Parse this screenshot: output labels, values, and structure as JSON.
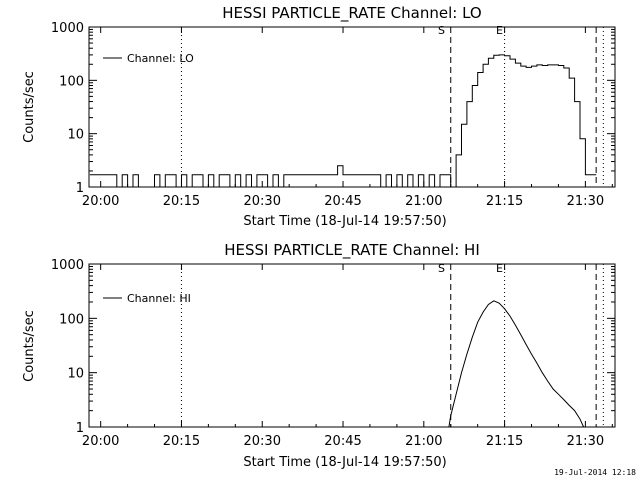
{
  "chart_data": [
    {
      "type": "line",
      "title": "HESSI PARTICLE_RATE Channel: LO",
      "xlabel": "Start Time (18-Jul-14 19:57:50)",
      "ylabel": "Counts/sec",
      "yscale": "log",
      "ylim": [
        1,
        1000
      ],
      "xlim": [
        "19:57:50",
        "21:35:30"
      ],
      "x_ticks": [
        "20:00",
        "20:15",
        "20:30",
        "20:45",
        "21:00",
        "21:15",
        "21:30"
      ],
      "y_ticks": [
        "1",
        "10",
        "100",
        "1000"
      ],
      "legend": "top-left",
      "series": [
        {
          "name": "Channel: LO",
          "x": [
            "19:58",
            "20:02",
            "20:03",
            "20:04",
            "20:05",
            "20:06",
            "20:07",
            "20:09",
            "20:10",
            "20:11",
            "20:12",
            "20:13",
            "20:14",
            "20:15",
            "20:16",
            "20:17",
            "20:18",
            "20:19",
            "20:20",
            "20:21",
            "20:22",
            "20:23",
            "20:24",
            "20:25",
            "20:26",
            "20:27",
            "20:28",
            "20:29",
            "20:30",
            "20:31",
            "20:32",
            "20:33",
            "20:34",
            "20:35",
            "20:36",
            "20:37",
            "20:38",
            "20:39",
            "20:40",
            "20:41",
            "20:42",
            "20:43",
            "20:44",
            "20:45",
            "20:46",
            "20:47",
            "20:48",
            "20:49",
            "20:50",
            "20:51",
            "20:52",
            "20:53",
            "20:54",
            "20:55",
            "20:56",
            "20:57",
            "20:58",
            "20:59",
            "21:00",
            "21:01",
            "21:02",
            "21:03",
            "21:04",
            "21:05",
            "21:06",
            "21:07",
            "21:08",
            "21:09",
            "21:10",
            "21:11",
            "21:12",
            "21:13",
            "21:14",
            "21:15",
            "21:16",
            "21:17",
            "21:18",
            "21:19",
            "21:20",
            "21:21",
            "21:22",
            "21:23",
            "21:24",
            "21:25",
            "21:26",
            "21:27",
            "21:28",
            "21:29",
            "21:30",
            "21:31",
            "21:32"
          ],
          "y": [
            1.7,
            1.7,
            1,
            1.7,
            1,
            1.7,
            1,
            1,
            1.7,
            1,
            1.7,
            1.7,
            1,
            1.7,
            1,
            1.7,
            1.7,
            1,
            1.7,
            1,
            1.7,
            1.7,
            1,
            1.7,
            1,
            1.7,
            1,
            1.7,
            1.7,
            1,
            1.7,
            1,
            1.7,
            1.7,
            1.7,
            1.7,
            1.7,
            1.7,
            1.7,
            1.7,
            1.7,
            1.7,
            2.5,
            1.7,
            1.7,
            1.7,
            1.7,
            1.7,
            1.7,
            1.7,
            1,
            1.7,
            1,
            1.7,
            1,
            1.7,
            1,
            1.7,
            1,
            1.7,
            1,
            1.7,
            1.7,
            1,
            4,
            15,
            40,
            80,
            140,
            200,
            260,
            295,
            300,
            290,
            250,
            210,
            185,
            175,
            185,
            195,
            190,
            195,
            195,
            190,
            170,
            110,
            40,
            8,
            1.7,
            1.7,
            1.7
          ]
        }
      ],
      "annotations": [
        "S",
        "E"
      ]
    },
    {
      "type": "line",
      "title": "HESSI PARTICLE_RATE Channel: HI",
      "xlabel": "Start Time (18-Jul-14 19:57:50)",
      "ylabel": "Counts/sec",
      "yscale": "log",
      "ylim": [
        1,
        1000
      ],
      "xlim": [
        "19:57:50",
        "21:35:30"
      ],
      "x_ticks": [
        "20:00",
        "20:15",
        "20:30",
        "20:45",
        "21:00",
        "21:15",
        "21:30"
      ],
      "y_ticks": [
        "1",
        "10",
        "100",
        "1000"
      ],
      "legend": "top-left",
      "series": [
        {
          "name": "Channel: HI",
          "x": [
            "21:04:40",
            "21:05",
            "21:06",
            "21:07",
            "21:08",
            "21:09",
            "21:10",
            "21:11",
            "21:12",
            "21:13",
            "21:14",
            "21:15",
            "21:16",
            "21:17",
            "21:18",
            "21:19",
            "21:20",
            "21:21",
            "21:22",
            "21:23",
            "21:24",
            "21:25",
            "21:26",
            "21:27",
            "21:28",
            "21:29",
            "21:29:40"
          ],
          "y": [
            1,
            1.6,
            4,
            10,
            22,
            45,
            85,
            130,
            180,
            210,
            190,
            150,
            110,
            75,
            50,
            33,
            22,
            15,
            10,
            7,
            5,
            4,
            3.2,
            2.5,
            2,
            1.4,
            1
          ]
        }
      ],
      "annotations": [
        "S",
        "E"
      ]
    }
  ],
  "footer": {
    "timestamp": "19-Jul-2014 12:18"
  }
}
